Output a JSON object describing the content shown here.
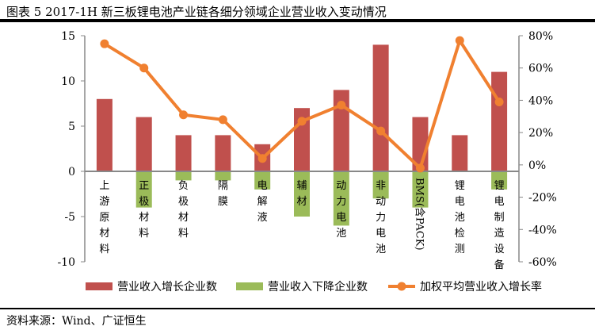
{
  "header": {
    "title": "图表 5 2017-1H 新三板锂电池产业链各细分领域企业营业收入变动情况"
  },
  "footer": {
    "source": "资料来源：Wind、广证恒生"
  },
  "chart_data": {
    "type": "bar",
    "categories": [
      "上游原材料",
      "正极材料",
      "负极材料",
      "隔膜",
      "电解液",
      "辅材",
      "动力电池",
      "非动力电池",
      "BMS(含PACK)",
      "锂电池检测",
      "锂电制造设备"
    ],
    "series": [
      {
        "name": "营业收入增长企业数",
        "type": "bar",
        "color": "#C0504D",
        "values": [
          8,
          6,
          4,
          4,
          3,
          7,
          9,
          14,
          6,
          4,
          11
        ]
      },
      {
        "name": "营业收入下降企业数",
        "type": "bar",
        "color": "#9BBB59",
        "values": [
          0,
          -4,
          -1,
          -1,
          -2,
          -5,
          -6,
          -3,
          -4,
          0,
          -2
        ]
      },
      {
        "name": "加权平均营业收入增长率",
        "type": "line",
        "axis": "right",
        "color": "#F08030",
        "values": [
          75,
          60,
          31,
          28,
          4,
          27,
          37,
          21,
          -2,
          77,
          39
        ]
      }
    ],
    "ylim": [
      -10,
      15
    ],
    "yticks": [
      "-10",
      "-5",
      "0",
      "5",
      "10",
      "15"
    ],
    "y2lim": [
      -60,
      80
    ],
    "y2ticks": [
      "-60%",
      "-40%",
      "-20%",
      "0%",
      "20%",
      "40%",
      "60%",
      "80%"
    ],
    "legend": "bottom"
  }
}
